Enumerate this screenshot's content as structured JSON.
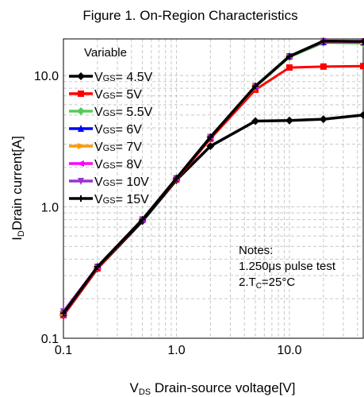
{
  "chart_data": {
    "type": "line",
    "title": "Figure 1. On-Region Characteristics",
    "xlabel": {
      "pre": "V",
      "sub": "DS",
      "post": " Drain-source voltage[V]"
    },
    "ylabel": {
      "pre": "I",
      "sub": "D",
      "post": "Drain current[A]"
    },
    "xscale": "log",
    "yscale": "log",
    "xlim": [
      0.1,
      45
    ],
    "ylim": [
      0.1,
      19
    ],
    "xticks": [
      {
        "value": 0.1,
        "label": "0.1"
      },
      {
        "value": 1,
        "label": "1.0"
      },
      {
        "value": 10,
        "label": "10.0"
      }
    ],
    "yticks": [
      {
        "value": 0.1,
        "label": "0.1"
      },
      {
        "value": 1,
        "label": "1.0"
      },
      {
        "value": 10,
        "label": "10.0"
      }
    ],
    "grid": true,
    "legend": {
      "title": "Variable",
      "placement": "top-left",
      "items": [
        "4.5V",
        "5V",
        "5.5V",
        "6V",
        "7V",
        "8V",
        "10V",
        "15V"
      ],
      "prefix": "V",
      "prefix_sub": "GS",
      "separator": "= "
    },
    "annotation": {
      "lines": [
        "Notes:",
        "1.250μs pulse test",
        "2.T",
        "C",
        "=25°C"
      ]
    },
    "series": [
      {
        "name": "VGS= 4.5V",
        "color": "#000000",
        "marker": "diamond",
        "x": [
          0.1,
          0.2,
          0.5,
          1,
          2,
          5,
          10,
          20,
          45
        ],
        "y": [
          0.15,
          0.34,
          0.78,
          1.6,
          2.9,
          4.5,
          4.55,
          4.65,
          5.0
        ]
      },
      {
        "name": "VGS= 5V",
        "color": "#ff0000",
        "marker": "square",
        "x": [
          0.1,
          0.2,
          0.5,
          1,
          2,
          5,
          10,
          20,
          45
        ],
        "y": [
          0.15,
          0.34,
          0.8,
          1.62,
          3.3,
          7.8,
          11.5,
          11.7,
          11.8
        ]
      },
      {
        "name": "VGS= 5.5V",
        "color": "#55cc55",
        "marker": "diamond",
        "x": [
          0.1,
          0.2,
          0.5,
          1,
          2,
          5,
          10,
          20,
          45
        ],
        "y": [
          0.155,
          0.35,
          0.8,
          1.65,
          3.4,
          8.2,
          13.8,
          17.8,
          17.6
        ]
      },
      {
        "name": "VGS= 6V",
        "color": "#0000ff",
        "marker": "triangle-up",
        "x": [
          0.1,
          0.2,
          0.5,
          1,
          2,
          5,
          10,
          20,
          45
        ],
        "y": [
          0.155,
          0.35,
          0.8,
          1.65,
          3.4,
          8.3,
          14.0,
          18.0,
          17.9
        ]
      },
      {
        "name": "VGS= 7V",
        "color": "#ff9900",
        "marker": "triangle-right",
        "x": [
          0.1,
          0.2,
          0.5,
          1,
          2,
          5,
          10,
          20,
          45
        ],
        "y": [
          0.155,
          0.35,
          0.8,
          1.65,
          3.4,
          8.3,
          14.0,
          18.1,
          18.0
        ]
      },
      {
        "name": "VGS= 8V",
        "color": "#ff00ff",
        "marker": "triangle-left",
        "x": [
          0.1,
          0.2,
          0.5,
          1,
          2,
          5,
          10,
          20,
          45
        ],
        "y": [
          0.16,
          0.35,
          0.8,
          1.65,
          3.4,
          8.3,
          14.0,
          18.2,
          18.1
        ]
      },
      {
        "name": "VGS=10V",
        "color": "#9933cc",
        "marker": "triangle-down",
        "x": [
          0.1,
          0.2,
          0.5,
          1,
          2,
          5,
          10,
          20,
          45
        ],
        "y": [
          0.16,
          0.35,
          0.8,
          1.65,
          3.4,
          8.3,
          14.0,
          18.3,
          18.2
        ]
      },
      {
        "name": "VGS=15V",
        "color": "#000000",
        "marker": "plus",
        "x": [
          0.1,
          0.2,
          0.5,
          1,
          2,
          5,
          10,
          20,
          45
        ],
        "y": [
          0.155,
          0.35,
          0.8,
          1.65,
          3.4,
          8.3,
          14.0,
          18.3,
          18.2
        ]
      }
    ]
  }
}
